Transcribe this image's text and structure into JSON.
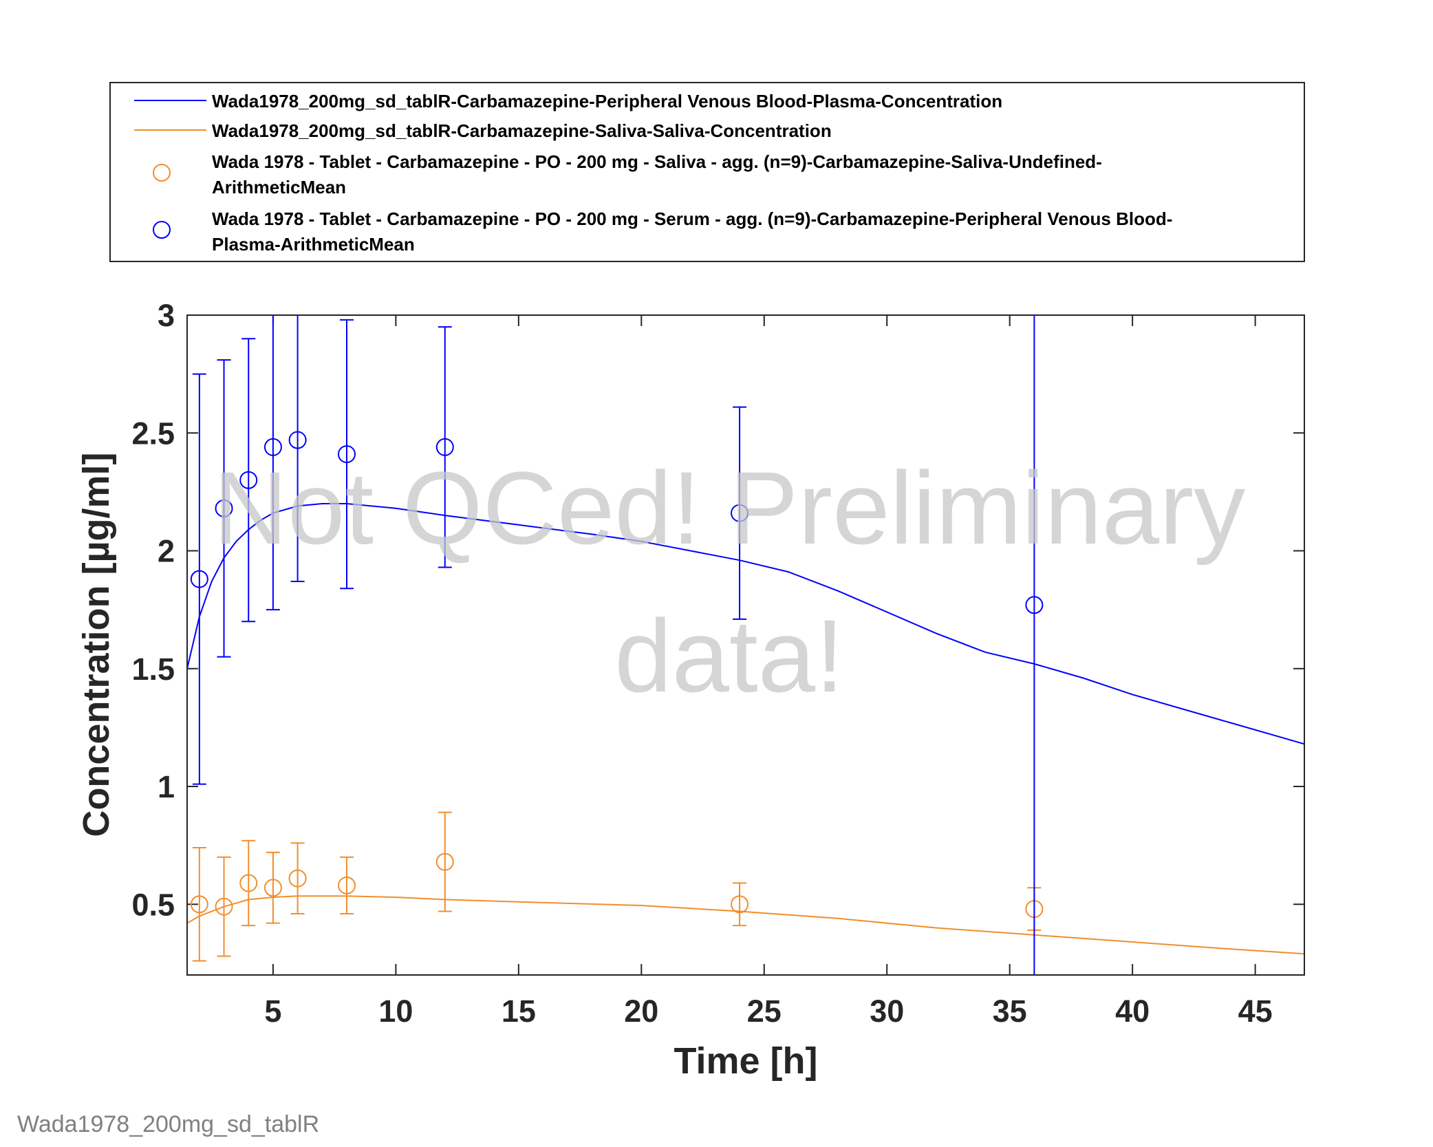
{
  "chart_data": {
    "type": "line",
    "xlabel": "Time [h]",
    "ylabel": "Concentration [µg/ml]",
    "xlim": [
      1.5,
      47
    ],
    "ylim": [
      0.2,
      3
    ],
    "xticks": [
      5,
      10,
      15,
      20,
      25,
      30,
      35,
      40,
      45
    ],
    "xtick_labels": [
      "5",
      "10",
      "15",
      "20",
      "25",
      "30",
      "35",
      "40",
      "45"
    ],
    "yticks": [
      0.5,
      1,
      1.5,
      2,
      2.5,
      3
    ],
    "ytick_labels": [
      "0.5",
      "1",
      "1.5",
      "2",
      "2.5",
      "3"
    ],
    "grid": false,
    "legend_position": "top (outside plot)",
    "series": [
      {
        "name": "Wada1978_200mg_sd_tablR-Carbamazepine-Peripheral Venous Blood-Plasma-Concentration",
        "kind": "line",
        "color": "#0000ff",
        "x": [
          1.5,
          2,
          2.5,
          3,
          3.5,
          4,
          4.5,
          5,
          6,
          7,
          8,
          10,
          12,
          15,
          18,
          20,
          22,
          24,
          26,
          28,
          30,
          32,
          34,
          36,
          38,
          40,
          42,
          44,
          47
        ],
        "y": [
          1.5,
          1.72,
          1.87,
          1.97,
          2.04,
          2.09,
          2.13,
          2.16,
          2.19,
          2.2,
          2.2,
          2.18,
          2.15,
          2.11,
          2.07,
          2.04,
          2.0,
          1.96,
          1.91,
          1.83,
          1.74,
          1.65,
          1.57,
          1.52,
          1.46,
          1.39,
          1.33,
          1.27,
          1.18
        ]
      },
      {
        "name": "Wada1978_200mg_sd_tablR-Carbamazepine-Saliva-Saliva-Concentration",
        "kind": "line",
        "color": "#f28e2b",
        "x": [
          1.5,
          2,
          3,
          4,
          5,
          6,
          7,
          8,
          10,
          12,
          15,
          20,
          24,
          28,
          32,
          36,
          40,
          44,
          47
        ],
        "y": [
          0.42,
          0.45,
          0.49,
          0.52,
          0.53,
          0.535,
          0.535,
          0.535,
          0.53,
          0.52,
          0.51,
          0.495,
          0.47,
          0.44,
          0.4,
          0.37,
          0.34,
          0.31,
          0.29
        ]
      },
      {
        "name": "Wada 1978 - Tablet - Carbamazepine - PO - 200 mg - Saliva - agg. (n=9)-Carbamazepine-Saliva-Undefined-ArithmeticMean",
        "kind": "scatter",
        "color": "#f28e2b",
        "x": [
          2,
          3,
          4,
          5,
          6,
          8,
          12,
          24,
          36
        ],
        "y": [
          0.5,
          0.49,
          0.59,
          0.57,
          0.61,
          0.58,
          0.68,
          0.5,
          0.48
        ],
        "err_low": [
          0.26,
          0.28,
          0.41,
          0.42,
          0.46,
          0.46,
          0.47,
          0.41,
          0.39
        ],
        "err_high": [
          0.74,
          0.7,
          0.77,
          0.72,
          0.76,
          0.7,
          0.89,
          0.59,
          0.57
        ]
      },
      {
        "name": "Wada 1978 - Tablet - Carbamazepine - PO - 200 mg - Serum - agg. (n=9)-Carbamazepine-Peripheral Venous Blood-Plasma-ArithmeticMean",
        "kind": "scatter",
        "color": "#0000ff",
        "x": [
          2,
          3,
          4,
          5,
          6,
          8,
          12,
          24,
          36
        ],
        "y": [
          1.88,
          2.18,
          2.3,
          2.44,
          2.47,
          2.41,
          2.44,
          2.16,
          1.77
        ],
        "err_low": [
          1.01,
          1.55,
          1.7,
          1.75,
          1.87,
          1.84,
          1.93,
          1.71,
          0.2
        ],
        "err_high": [
          2.75,
          2.81,
          2.9,
          3.1,
          3.1,
          2.98,
          2.95,
          2.61,
          3.1
        ]
      }
    ]
  },
  "legend": {
    "entries": [
      [
        "Wada1978_200mg_sd_tablR-Carbamazepine-Peripheral Venous Blood-Plasma-Concentration"
      ],
      [
        "Wada1978_200mg_sd_tablR-Carbamazepine-Saliva-Saliva-Concentration"
      ],
      [
        "Wada 1978 - Tablet - Carbamazepine - PO - 200 mg - Saliva - agg. (n=9)-Carbamazepine-Saliva-Undefined-",
        "ArithmeticMean"
      ],
      [
        "Wada 1978 - Tablet - Carbamazepine - PO - 200 mg - Serum - agg. (n=9)-Carbamazepine-Peripheral Venous Blood-",
        "Plasma-ArithmeticMean"
      ]
    ]
  },
  "watermark": {
    "line1": "Not QCed! Preliminary",
    "line2": "data!"
  },
  "footer": {
    "text": "Wada1978_200mg_sd_tablR"
  }
}
